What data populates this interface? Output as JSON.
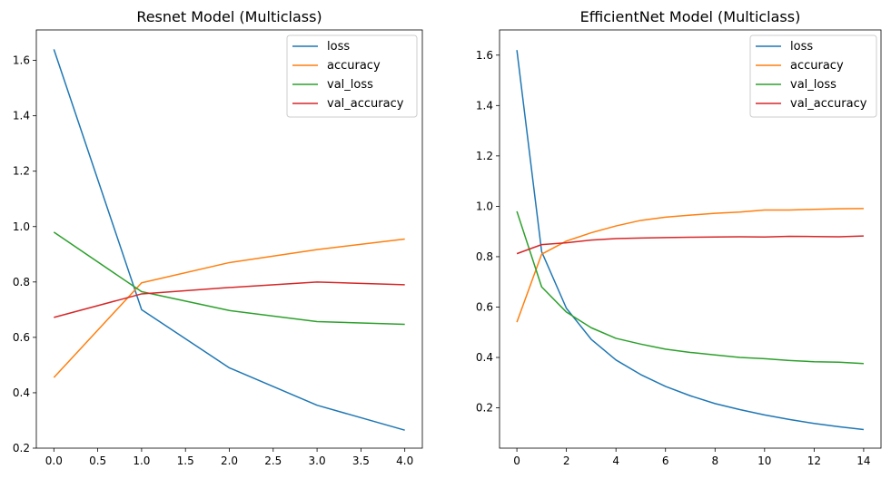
{
  "chart_data": [
    {
      "type": "line",
      "title": "Resnet Model (Multiclass)",
      "xlabel": "",
      "ylabel": "",
      "xlim": [
        -0.2,
        4.2
      ],
      "ylim": [
        0.2,
        1.71
      ],
      "xticks": [
        0.0,
        0.5,
        1.0,
        1.5,
        2.0,
        2.5,
        3.0,
        3.5,
        4.0
      ],
      "xtick_labels": [
        "0.0",
        "0.5",
        "1.0",
        "1.5",
        "2.0",
        "2.5",
        "3.0",
        "3.5",
        "4.0"
      ],
      "yticks": [
        0.2,
        0.4,
        0.6,
        0.8,
        1.0,
        1.2,
        1.4,
        1.6
      ],
      "ytick_labels": [
        "0.2",
        "0.4",
        "0.6",
        "0.8",
        "1.0",
        "1.2",
        "1.4",
        "1.6"
      ],
      "grid": false,
      "legend": "top-right",
      "x": [
        0,
        1,
        2,
        3,
        4
      ],
      "series": [
        {
          "name": "loss",
          "color": "#1f77b4",
          "values": [
            1.64,
            0.7,
            0.49,
            0.355,
            0.265
          ]
        },
        {
          "name": "accuracy",
          "color": "#ff7f0e",
          "values": [
            0.455,
            0.797,
            0.87,
            0.917,
            0.955
          ]
        },
        {
          "name": "val_loss",
          "color": "#2ca02c",
          "values": [
            0.98,
            0.765,
            0.697,
            0.657,
            0.647
          ]
        },
        {
          "name": "val_accuracy",
          "color": "#d62728",
          "values": [
            0.672,
            0.757,
            0.78,
            0.8,
            0.79
          ]
        }
      ]
    },
    {
      "type": "line",
      "title": "EfficientNet Model (Multiclass)",
      "xlabel": "",
      "ylabel": "",
      "xlim": [
        -0.7,
        14.7
      ],
      "ylim": [
        0.04,
        1.7
      ],
      "xticks": [
        0,
        2,
        4,
        6,
        8,
        10,
        12,
        14
      ],
      "xtick_labels": [
        "0",
        "2",
        "4",
        "6",
        "8",
        "10",
        "12",
        "14"
      ],
      "yticks": [
        0.2,
        0.4,
        0.6,
        0.8,
        1.0,
        1.2,
        1.4,
        1.6
      ],
      "ytick_labels": [
        "0.2",
        "0.4",
        "0.6",
        "0.8",
        "1.0",
        "1.2",
        "1.4",
        "1.6"
      ],
      "grid": false,
      "legend": "top-right",
      "x": [
        0,
        1,
        2,
        3,
        4,
        5,
        6,
        7,
        8,
        9,
        10,
        11,
        12,
        13,
        14
      ],
      "series": [
        {
          "name": "loss",
          "color": "#1f77b4",
          "values": [
            1.62,
            0.82,
            0.595,
            0.472,
            0.39,
            0.332,
            0.285,
            0.248,
            0.217,
            0.193,
            0.172,
            0.154,
            0.138,
            0.125,
            0.114
          ]
        },
        {
          "name": "accuracy",
          "color": "#ff7f0e",
          "values": [
            0.54,
            0.81,
            0.862,
            0.895,
            0.922,
            0.944,
            0.957,
            0.965,
            0.972,
            0.977,
            0.985,
            0.985,
            0.988,
            0.99,
            0.991
          ]
        },
        {
          "name": "val_loss",
          "color": "#2ca02c",
          "values": [
            0.98,
            0.68,
            0.58,
            0.518,
            0.476,
            0.453,
            0.433,
            0.42,
            0.41,
            0.4,
            0.395,
            0.388,
            0.383,
            0.381,
            0.376
          ]
        },
        {
          "name": "val_accuracy",
          "color": "#d62728",
          "values": [
            0.812,
            0.848,
            0.855,
            0.866,
            0.872,
            0.874,
            0.876,
            0.877,
            0.878,
            0.879,
            0.878,
            0.881,
            0.88,
            0.879,
            0.882
          ]
        }
      ]
    }
  ]
}
